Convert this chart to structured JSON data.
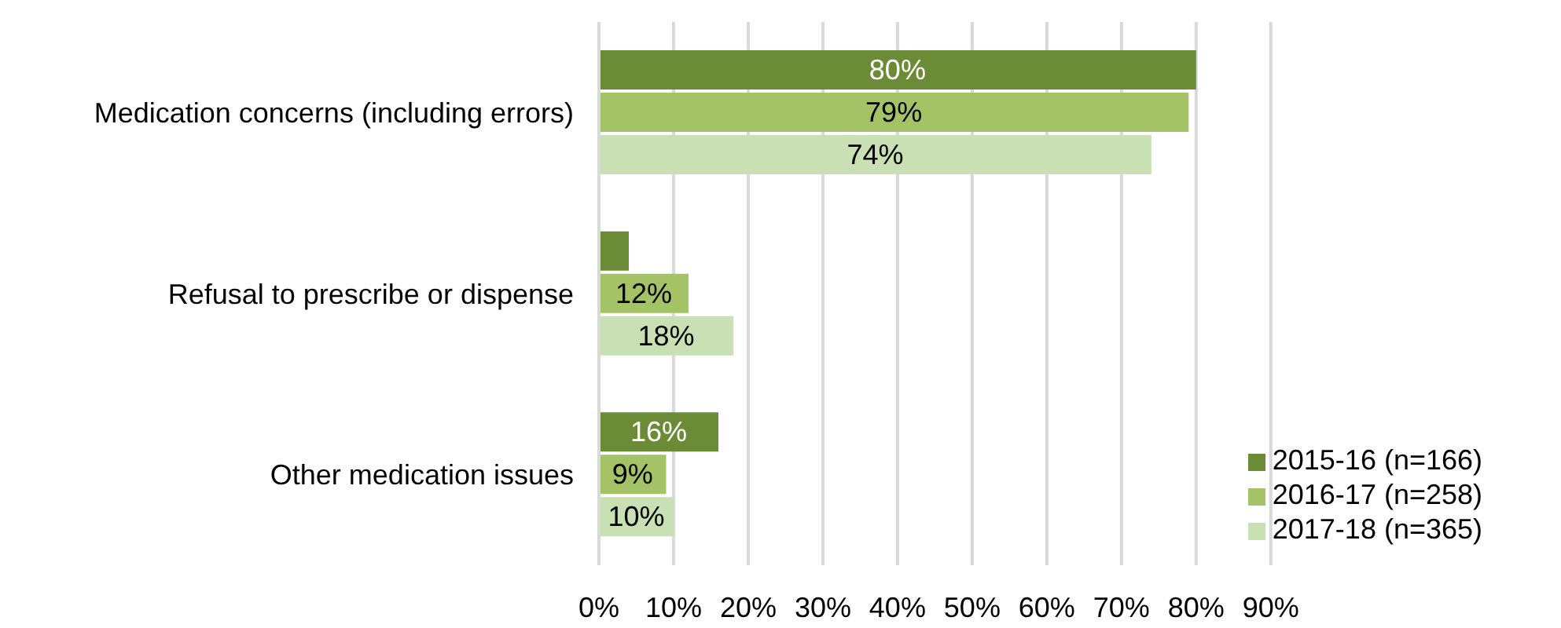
{
  "chart_data": {
    "type": "bar",
    "orientation": "horizontal",
    "categories": [
      "Medication concerns (including errors)",
      "Refusal to prescribe or dispense",
      "Other medication issues"
    ],
    "series": [
      {
        "name": "2015-16 (n=166)",
        "color": "#6c8b37",
        "values": [
          80,
          4,
          16
        ],
        "value_labels": [
          "80%",
          null,
          "16%"
        ]
      },
      {
        "name": "2016-17 (n=258)",
        "color": "#a4c266",
        "values": [
          79,
          12,
          9
        ],
        "value_labels": [
          "79%",
          "12%",
          "9%"
        ]
      },
      {
        "name": "2017-18 (n=365)",
        "color": "#c8e0b4",
        "values": [
          74,
          18,
          10
        ],
        "value_labels": [
          "74%",
          "18%",
          "10%"
        ]
      }
    ],
    "xlim": [
      0,
      90
    ],
    "xticks": [
      {
        "value": 0,
        "label": "0%"
      },
      {
        "value": 10,
        "label": "10%"
      },
      {
        "value": 20,
        "label": "20%"
      },
      {
        "value": 30,
        "label": "30%"
      },
      {
        "value": 40,
        "label": "40%"
      },
      {
        "value": 50,
        "label": "50%"
      },
      {
        "value": 60,
        "label": "60%"
      },
      {
        "value": 70,
        "label": "70%"
      },
      {
        "value": 80,
        "label": "80%"
      },
      {
        "value": 90,
        "label": "90%"
      }
    ],
    "grid": "x",
    "legend": "bottom right"
  }
}
